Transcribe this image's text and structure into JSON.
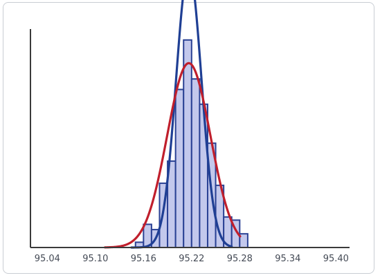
{
  "chart_data": {
    "type": "bar",
    "title": "",
    "xlabel": "",
    "ylabel": "",
    "x_ticks": [
      "95.04",
      "95.10",
      "95.16",
      "95.22",
      "95.28",
      "95.34",
      "95.40"
    ],
    "xlim": [
      95.019,
      95.417
    ],
    "ylim": [
      0,
      210
    ],
    "grid": false,
    "legend": "none",
    "series": [
      {
        "type": "histogram",
        "bin_width": 0.01,
        "bins": [
          {
            "x0": 95.15,
            "x1": 95.16,
            "value": 5
          },
          {
            "x0": 95.16,
            "x1": 95.17,
            "value": 22
          },
          {
            "x0": 95.17,
            "x1": 95.18,
            "value": 17
          },
          {
            "x0": 95.18,
            "x1": 95.19,
            "value": 61
          },
          {
            "x0": 95.19,
            "x1": 95.2,
            "value": 82
          },
          {
            "x0": 95.2,
            "x1": 95.21,
            "value": 150
          },
          {
            "x0": 95.21,
            "x1": 95.22,
            "value": 197
          },
          {
            "x0": 95.22,
            "x1": 95.23,
            "value": 160
          },
          {
            "x0": 95.23,
            "x1": 95.24,
            "value": 136
          },
          {
            "x0": 95.24,
            "x1": 95.25,
            "value": 99
          },
          {
            "x0": 95.25,
            "x1": 95.26,
            "value": 59
          },
          {
            "x0": 95.26,
            "x1": 95.27,
            "value": 29
          },
          {
            "x0": 95.27,
            "x1": 95.28,
            "value": 26
          },
          {
            "x0": 95.28,
            "x1": 95.29,
            "value": 13
          }
        ]
      },
      {
        "type": "normal_curve",
        "mean": 95.2165,
        "sd": 0.0158,
        "peak": 264,
        "x_range": [
          95.145,
          95.27
        ]
      },
      {
        "type": "normal_curve",
        "mean": 95.2165,
        "sd": 0.027,
        "peak": 175,
        "x_range": [
          95.112,
          95.2805
        ]
      }
    ],
    "colors": {
      "bar_fill": "#c3c8ec",
      "bar_stroke": "#2a4194",
      "curve_narrow": "#1f3f94",
      "curve_wide": "#c01f2c",
      "axis": "#3a3a3a",
      "tick_text": "#444a55"
    }
  }
}
